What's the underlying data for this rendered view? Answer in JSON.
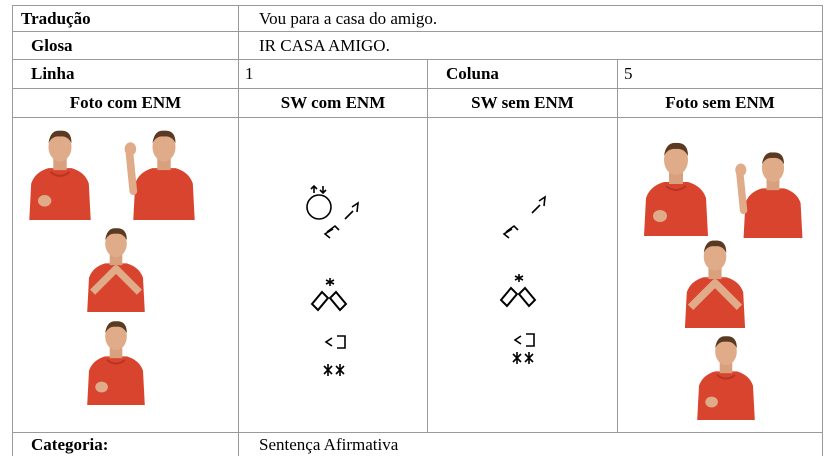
{
  "table": {
    "translation": {
      "label": "Tradução",
      "value": "Vou para a casa do amigo."
    },
    "gloss": {
      "label": "Glosa",
      "value": "IR CASA AMIGO."
    },
    "position": {
      "row_label": "Linha",
      "row": 1,
      "column_label": "Coluna",
      "column": 5
    },
    "headers": [
      "Foto com ENM",
      "SW com ENM",
      "SW sem ENM",
      "Foto sem ENM"
    ],
    "category": {
      "label": "Categoria:",
      "value": "Sentença Afirmativa"
    }
  }
}
